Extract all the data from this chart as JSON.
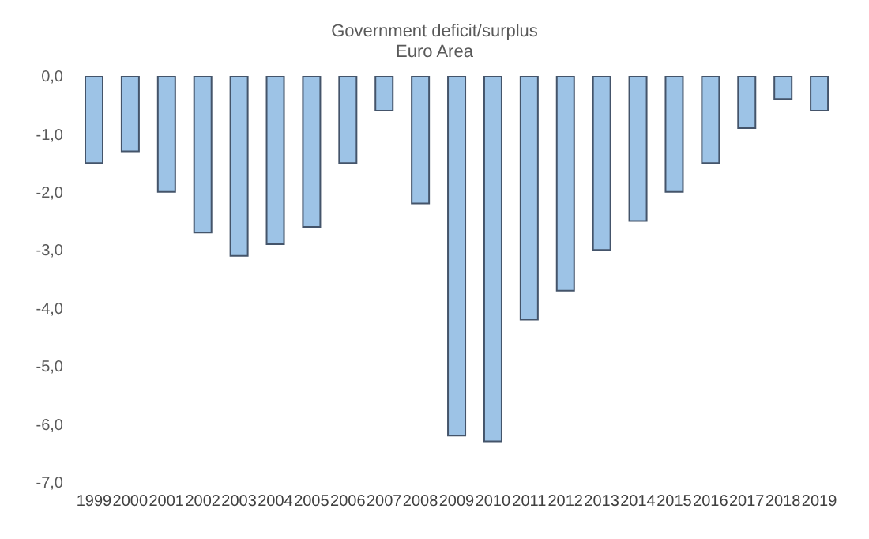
{
  "chart_data": {
    "type": "bar",
    "title": "Government deficit/surplus",
    "subtitle": "Euro Area",
    "categories": [
      "1999",
      "2000",
      "2001",
      "2002",
      "2003",
      "2004",
      "2005",
      "2006",
      "2007",
      "2008",
      "2009",
      "2010",
      "2011",
      "2012",
      "2013",
      "2014",
      "2015",
      "2016",
      "2017",
      "2018",
      "2019"
    ],
    "values": [
      -1.5,
      -1.3,
      -2.0,
      -2.7,
      -3.1,
      -2.9,
      -2.6,
      -1.5,
      -0.6,
      -2.2,
      -6.2,
      -6.3,
      -4.2,
      -3.7,
      -3.0,
      -2.5,
      -2.0,
      -1.5,
      -0.9,
      -0.4,
      -0.6
    ],
    "color": "#9dc3e6",
    "ylim": [
      -7,
      0
    ],
    "yticks": [
      {
        "value": 0,
        "label": "0,0"
      },
      {
        "value": -1,
        "label": "-1,0"
      },
      {
        "value": -2,
        "label": "-2,0"
      },
      {
        "value": -3,
        "label": "-3,0"
      },
      {
        "value": -4,
        "label": "-4,0"
      },
      {
        "value": -5,
        "label": "-5,0"
      },
      {
        "value": -6,
        "label": "-6,0"
      },
      {
        "value": -7,
        "label": "-7,0"
      }
    ],
    "grid": false,
    "legend": false
  }
}
